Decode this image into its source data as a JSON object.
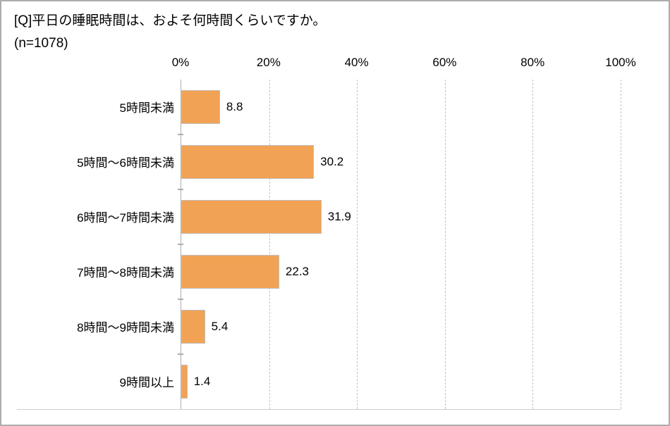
{
  "header": {
    "title": "[Q]平日の睡眠時間は、およそ何時間くらいですか。",
    "n_label": "(n=1078)"
  },
  "chart_data": {
    "type": "bar",
    "orientation": "horizontal",
    "title": "[Q]平日の睡眠時間は、およそ何時間くらいですか。",
    "sample_label": "(n=1078)",
    "categories": [
      "5時間未満",
      "5時間〜6時間未満",
      "6時間〜7時間未満",
      "7時間〜8時間未満",
      "8時間〜9時間未満",
      "9時間以上"
    ],
    "values": [
      8.8,
      30.2,
      31.9,
      22.3,
      5.4,
      1.4
    ],
    "value_labels": [
      "8.8",
      "30.2",
      "31.9",
      "22.3",
      "5.4",
      "1.4"
    ],
    "x_tick_labels": [
      "0%",
      "20%",
      "40%",
      "60%",
      "80%",
      "100%"
    ],
    "x_tick_values": [
      0,
      20,
      40,
      60,
      80,
      100
    ],
    "xlim": [
      0,
      100
    ],
    "grid": "vertical-dashed",
    "legend": "none",
    "bar_color": "#F2A254",
    "bar_border_color": "#BFBFBF",
    "axis_color": "#ACACAC"
  }
}
